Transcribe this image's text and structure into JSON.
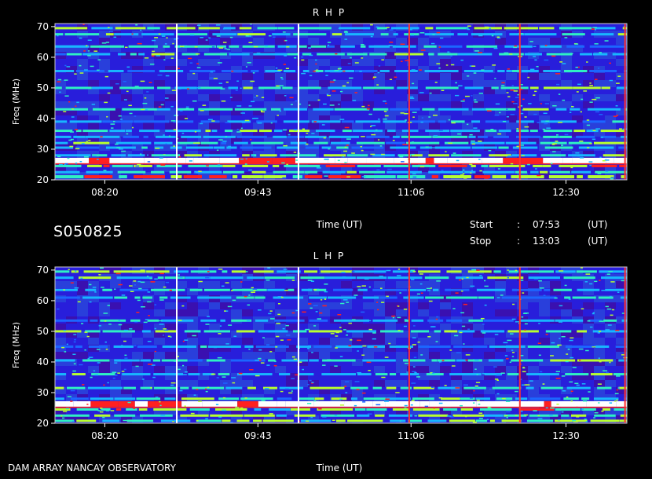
{
  "observation_id": "S050825",
  "footer_label": "DAM ARRAY   NANCAY OBSERVATORY",
  "start": {
    "label": "Start",
    "sep": ":",
    "value": "07:53",
    "unit": "(UT)"
  },
  "stop": {
    "label": "Stop",
    "sep": ":",
    "value": "13:03",
    "unit": "(UT)"
  },
  "colors": {
    "background": "#3a10b0",
    "grid": "#000000"
  },
  "chart_data": [
    {
      "type": "heatmap",
      "title": "R H P",
      "xlabel": "Time (UT)",
      "ylabel": "Freq (MHz)",
      "x_ticks": [
        "08:20",
        "09:43",
        "11:06",
        "12:30"
      ],
      "y_ticks": [
        20,
        30,
        40,
        50,
        60,
        70
      ],
      "ylim": [
        20,
        71
      ],
      "xlim": [
        "07:53",
        "13:03"
      ],
      "colormap": [
        "#3a10b0",
        "#1a2aff",
        "#1c66ff",
        "#18b6ff",
        "#2ef0c4",
        "#b8ff30",
        "#ff2020",
        "#ffffff"
      ],
      "vertical_lines": [
        {
          "time": "08:59",
          "color": "#ffffff"
        },
        {
          "time": "10:05",
          "color": "#ffffff"
        },
        {
          "time": "11:05",
          "color": "#ff3030"
        },
        {
          "time": "12:05",
          "color": "#ff3030"
        },
        {
          "time": "13:02",
          "color": "#ff3030"
        }
      ],
      "horizontal_bands": [
        {
          "freq": 21.0,
          "intensity": 0.75
        },
        {
          "freq": 22.5,
          "intensity": 0.55
        },
        {
          "freq": 24.5,
          "intensity": 0.7
        },
        {
          "freq": 26.3,
          "intensity": 1.0
        },
        {
          "freq": 28.0,
          "intensity": 0.55
        },
        {
          "freq": 30.5,
          "intensity": 0.45
        },
        {
          "freq": 32.0,
          "intensity": 0.5
        },
        {
          "freq": 34.0,
          "intensity": 0.4
        },
        {
          "freq": 36.0,
          "intensity": 0.55
        },
        {
          "freq": 39.0,
          "intensity": 0.4
        },
        {
          "freq": 43.0,
          "intensity": 0.5
        },
        {
          "freq": 50.0,
          "intensity": 0.55
        },
        {
          "freq": 55.5,
          "intensity": 0.4
        },
        {
          "freq": 61.0,
          "intensity": 0.5
        },
        {
          "freq": 63.5,
          "intensity": 0.45
        },
        {
          "freq": 67.5,
          "intensity": 0.55
        },
        {
          "freq": 69.5,
          "intensity": 0.6
        }
      ]
    },
    {
      "type": "heatmap",
      "title": "L H P",
      "xlabel": "Time (UT)",
      "ylabel": "Freq (MHz)",
      "x_ticks": [
        "08:20",
        "09:43",
        "11:06",
        "12:30"
      ],
      "y_ticks": [
        20,
        30,
        40,
        50,
        60,
        70
      ],
      "ylim": [
        20,
        71
      ],
      "xlim": [
        "07:53",
        "13:03"
      ],
      "colormap": [
        "#3a10b0",
        "#1a2aff",
        "#1c66ff",
        "#18b6ff",
        "#2ef0c4",
        "#b8ff30",
        "#ff2020",
        "#ffffff"
      ],
      "vertical_lines": [
        {
          "time": "08:59",
          "color": "#ffffff"
        },
        {
          "time": "10:05",
          "color": "#ffffff"
        },
        {
          "time": "11:05",
          "color": "#ff3030"
        },
        {
          "time": "12:05",
          "color": "#ff3030"
        },
        {
          "time": "13:02",
          "color": "#ff3030"
        }
      ],
      "horizontal_bands": [
        {
          "freq": 20.8,
          "intensity": 0.6
        },
        {
          "freq": 22.5,
          "intensity": 0.6
        },
        {
          "freq": 24.5,
          "intensity": 0.65
        },
        {
          "freq": 26.3,
          "intensity": 1.0
        },
        {
          "freq": 28.0,
          "intensity": 0.5
        },
        {
          "freq": 31.5,
          "intensity": 0.55
        },
        {
          "freq": 36.0,
          "intensity": 0.55
        },
        {
          "freq": 40.5,
          "intensity": 0.5
        },
        {
          "freq": 45.0,
          "intensity": 0.4
        },
        {
          "freq": 50.0,
          "intensity": 0.55
        },
        {
          "freq": 53.5,
          "intensity": 0.4
        },
        {
          "freq": 61.0,
          "intensity": 0.45
        },
        {
          "freq": 63.5,
          "intensity": 0.4
        },
        {
          "freq": 67.5,
          "intensity": 0.5
        },
        {
          "freq": 69.5,
          "intensity": 0.6
        }
      ]
    }
  ]
}
